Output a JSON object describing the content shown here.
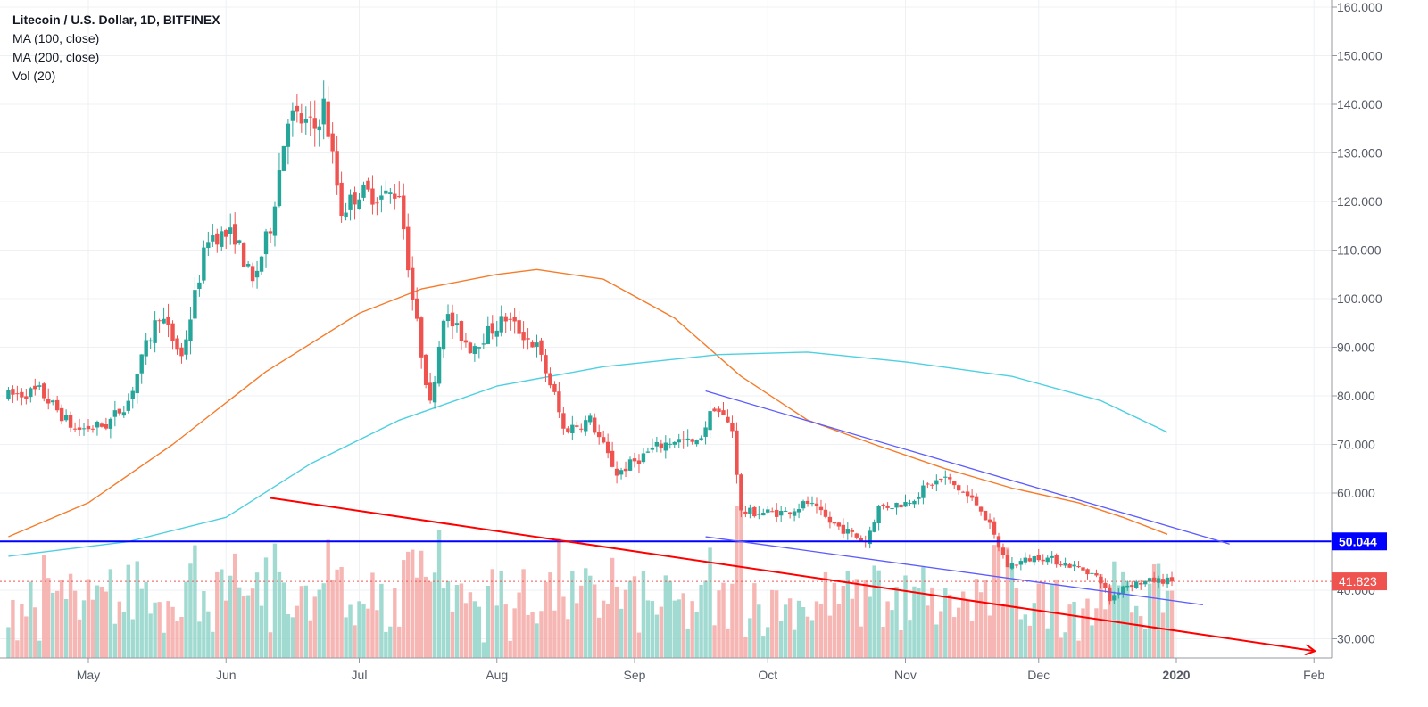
{
  "chart_data": {
    "type": "candlestick",
    "title": "Litecoin / U.S. Dollar, 1D, BITFINEX",
    "indicators": [
      "MA (100, close)",
      "MA (200, close)",
      "Vol (20)"
    ],
    "x_labels": [
      "May",
      "Jun",
      "Jul",
      "Aug",
      "Sep",
      "Oct",
      "Nov",
      "Dec",
      "2020",
      "Feb"
    ],
    "y_ticks": [
      "160.000",
      "150.000",
      "140.000",
      "130.000",
      "120.000",
      "110.000",
      "100.000",
      "90.000",
      "80.000",
      "70.000",
      "60.000",
      "40.000",
      "30.000"
    ],
    "ylim": [
      25,
      160
    ],
    "horizontal_level": {
      "value": 50.044,
      "label": "50.044",
      "color": "#0000ff"
    },
    "last_price": {
      "value": 41.823,
      "label": "41.823",
      "color": "#ef5350"
    },
    "up_color": "#26a69a",
    "down_color": "#ef5350",
    "ma100_color": "#f57c2b",
    "ma200_color": "#4dd0e1",
    "price_path_keypoints": [
      {
        "date": "2019-04-13",
        "price": 80
      },
      {
        "date": "2019-04-20",
        "price": 81
      },
      {
        "date": "2019-04-28",
        "price": 73
      },
      {
        "date": "2019-05-05",
        "price": 74
      },
      {
        "date": "2019-05-10",
        "price": 79
      },
      {
        "date": "2019-05-14",
        "price": 90
      },
      {
        "date": "2019-05-17",
        "price": 97
      },
      {
        "date": "2019-05-22",
        "price": 88
      },
      {
        "date": "2019-05-28",
        "price": 113
      },
      {
        "date": "2019-06-03",
        "price": 113
      },
      {
        "date": "2019-06-07",
        "price": 103
      },
      {
        "date": "2019-06-11",
        "price": 115
      },
      {
        "date": "2019-06-15",
        "price": 138
      },
      {
        "date": "2019-06-21",
        "price": 135
      },
      {
        "date": "2019-06-23",
        "price": 140
      },
      {
        "date": "2019-06-27",
        "price": 118
      },
      {
        "date": "2019-07-01",
        "price": 122
      },
      {
        "date": "2019-07-06",
        "price": 121
      },
      {
        "date": "2019-07-10",
        "price": 122
      },
      {
        "date": "2019-07-13",
        "price": 100
      },
      {
        "date": "2019-07-17",
        "price": 78
      },
      {
        "date": "2019-07-20",
        "price": 97
      },
      {
        "date": "2019-07-26",
        "price": 90
      },
      {
        "date": "2019-08-03",
        "price": 96
      },
      {
        "date": "2019-08-10",
        "price": 90
      },
      {
        "date": "2019-08-14",
        "price": 80
      },
      {
        "date": "2019-08-16",
        "price": 73
      },
      {
        "date": "2019-08-22",
        "price": 75
      },
      {
        "date": "2019-08-28",
        "price": 64
      },
      {
        "date": "2019-09-05",
        "price": 69
      },
      {
        "date": "2019-09-10",
        "price": 71
      },
      {
        "date": "2019-09-15",
        "price": 70
      },
      {
        "date": "2019-09-19",
        "price": 78
      },
      {
        "date": "2019-09-23",
        "price": 73
      },
      {
        "date": "2019-09-25",
        "price": 56
      },
      {
        "date": "2019-10-05",
        "price": 56
      },
      {
        "date": "2019-10-10",
        "price": 58
      },
      {
        "date": "2019-10-15",
        "price": 54
      },
      {
        "date": "2019-10-23",
        "price": 50
      },
      {
        "date": "2019-10-26",
        "price": 57
      },
      {
        "date": "2019-11-01",
        "price": 58
      },
      {
        "date": "2019-11-07",
        "price": 62
      },
      {
        "date": "2019-11-10",
        "price": 63
      },
      {
        "date": "2019-11-14",
        "price": 60
      },
      {
        "date": "2019-11-18",
        "price": 57
      },
      {
        "date": "2019-11-24",
        "price": 45
      },
      {
        "date": "2019-12-01",
        "price": 47
      },
      {
        "date": "2019-12-05",
        "price": 46
      },
      {
        "date": "2019-12-12",
        "price": 44
      },
      {
        "date": "2019-12-15",
        "price": 42
      },
      {
        "date": "2019-12-17",
        "price": 38
      },
      {
        "date": "2019-12-20",
        "price": 41
      },
      {
        "date": "2019-12-27",
        "price": 42
      },
      {
        "date": "2019-12-31",
        "price": 42
      }
    ],
    "ma100_keypoints": [
      {
        "date": "2019-04-13",
        "price": 51
      },
      {
        "date": "2019-05-01",
        "price": 58
      },
      {
        "date": "2019-05-20",
        "price": 70
      },
      {
        "date": "2019-06-10",
        "price": 85
      },
      {
        "date": "2019-07-01",
        "price": 97
      },
      {
        "date": "2019-07-15",
        "price": 102
      },
      {
        "date": "2019-08-01",
        "price": 105
      },
      {
        "date": "2019-08-10",
        "price": 106
      },
      {
        "date": "2019-08-25",
        "price": 104
      },
      {
        "date": "2019-09-10",
        "price": 96
      },
      {
        "date": "2019-09-25",
        "price": 84
      },
      {
        "date": "2019-10-10",
        "price": 75
      },
      {
        "date": "2019-10-25",
        "price": 70
      },
      {
        "date": "2019-11-10",
        "price": 65
      },
      {
        "date": "2019-11-25",
        "price": 61
      },
      {
        "date": "2019-12-10",
        "price": 58
      },
      {
        "date": "2019-12-20",
        "price": 55
      },
      {
        "date": "2019-12-30",
        "price": 51.5
      }
    ],
    "ma200_keypoints": [
      {
        "date": "2019-04-13",
        "price": 47
      },
      {
        "date": "2019-05-10",
        "price": 50
      },
      {
        "date": "2019-06-01",
        "price": 55
      },
      {
        "date": "2019-06-20",
        "price": 66
      },
      {
        "date": "2019-07-10",
        "price": 75
      },
      {
        "date": "2019-08-01",
        "price": 82
      },
      {
        "date": "2019-08-25",
        "price": 86
      },
      {
        "date": "2019-09-20",
        "price": 88.5
      },
      {
        "date": "2019-10-10",
        "price": 89
      },
      {
        "date": "2019-11-01",
        "price": 87
      },
      {
        "date": "2019-11-25",
        "price": 84
      },
      {
        "date": "2019-12-15",
        "price": 79
      },
      {
        "date": "2019-12-30",
        "price": 72.5
      }
    ],
    "trendlines": [
      {
        "name": "long-downtrend",
        "color": "#ff0000",
        "p1": {
          "date": "2019-06-11",
          "price": 59
        },
        "p2": {
          "date": "2020-02-01",
          "price": 27.5
        },
        "arrow": true
      },
      {
        "name": "channel-top",
        "color": "#5b5bff",
        "p1": {
          "date": "2019-09-17",
          "price": 81
        },
        "p2": {
          "date": "2020-01-13",
          "price": 49.5
        },
        "arrow": false
      },
      {
        "name": "channel-bottom",
        "color": "#5b5bff",
        "p1": {
          "date": "2019-09-17",
          "price": 51
        },
        "p2": {
          "date": "2020-01-07",
          "price": 37
        },
        "arrow": false
      }
    ]
  }
}
